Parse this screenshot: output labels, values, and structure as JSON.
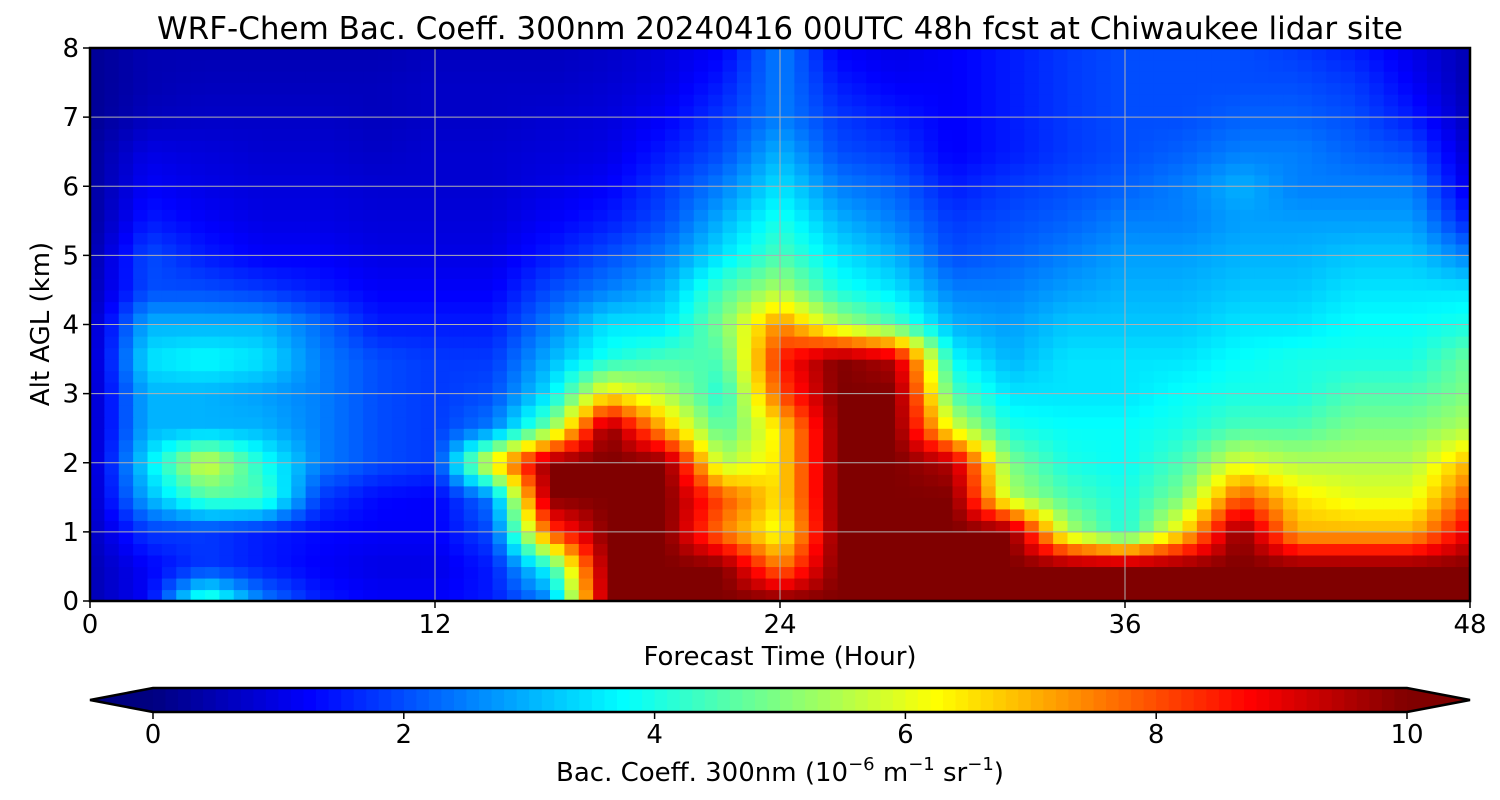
{
  "chart_data": {
    "type": "heatmap",
    "title": "WRF-Chem Bac. Coeff. 300nm  20240416 00UTC 48h fcst at Chiwaukee lidar site",
    "xlabel": "Forecast Time (Hour)",
    "ylabel": "Alt AGL (km)",
    "xlim": [
      0,
      48
    ],
    "ylim": [
      0,
      8
    ],
    "xticks": [
      0,
      12,
      24,
      36,
      48
    ],
    "yticks": [
      0,
      1,
      2,
      3,
      4,
      5,
      6,
      7,
      8
    ],
    "grid": true,
    "colormap": "jet",
    "colorbar": {
      "orientation": "horizontal",
      "position": "bottom",
      "label_prefix": "Bac. Coeff. 300nm  (10",
      "label_exp1": "−6",
      "label_mid": " m",
      "label_exp2": "−1",
      "label_mid2": " sr",
      "label_exp3": "−1",
      "label_suffix": ")",
      "vmin": 0,
      "vmax": 10,
      "ticks": [
        0,
        2,
        4,
        6,
        8,
        10
      ],
      "extend": "both"
    },
    "hours": [
      0,
      2,
      4,
      6,
      8,
      10,
      12,
      14,
      16,
      18,
      20,
      22,
      24,
      26,
      28,
      30,
      32,
      34,
      36,
      38,
      40,
      42,
      44,
      46,
      48
    ],
    "altitudes_km": [
      0,
      0.5,
      1,
      1.5,
      2,
      2.5,
      3,
      3.5,
      4,
      4.5,
      5,
      5.5,
      6,
      6.5,
      7,
      7.5,
      8
    ],
    "values": [
      [
        0.5,
        1.2,
        4.5,
        2.5,
        1.5,
        1.2,
        1.2,
        1.5,
        2.5,
        10,
        10,
        10,
        10,
        10,
        10,
        10,
        10,
        10,
        10,
        10,
        10,
        10,
        10,
        10,
        10
      ],
      [
        0.5,
        1.2,
        1.8,
        1.5,
        1.2,
        1.0,
        1.0,
        1.5,
        4.0,
        10,
        10,
        10,
        7.5,
        10,
        10,
        10,
        10,
        10,
        10,
        10,
        10,
        10,
        10,
        10,
        10
      ],
      [
        0.6,
        1.8,
        1.8,
        1.5,
        1.3,
        1.2,
        1.2,
        2.0,
        8.0,
        10,
        10,
        7.5,
        6.0,
        10,
        10,
        10,
        10,
        5.5,
        4.0,
        6.5,
        10,
        7.0,
        7.0,
        7.0,
        9.0
      ],
      [
        0.6,
        3.0,
        4.5,
        4.5,
        1.8,
        1.3,
        1.2,
        2.5,
        10,
        10,
        10,
        8.0,
        6.5,
        10,
        10,
        10,
        5.5,
        4.5,
        4.0,
        5.0,
        8.0,
        6.5,
        6.0,
        6.0,
        8.0
      ],
      [
        0.6,
        3.5,
        6.0,
        4.0,
        2.5,
        2.0,
        1.8,
        6.5,
        10,
        10,
        10,
        5.5,
        6.5,
        10,
        10,
        9.5,
        5.0,
        4.0,
        3.8,
        4.5,
        6.0,
        5.5,
        5.5,
        5.5,
        7.0
      ],
      [
        0.6,
        3.0,
        3.0,
        3.0,
        2.5,
        2.0,
        1.8,
        2.5,
        5.0,
        10,
        7.0,
        4.5,
        6.5,
        10,
        10,
        6.0,
        4.0,
        3.8,
        3.8,
        4.0,
        4.5,
        4.5,
        5.0,
        5.0,
        5.5
      ],
      [
        0.6,
        3.0,
        3.0,
        2.8,
        2.5,
        2.0,
        1.8,
        2.0,
        3.5,
        6.5,
        5.5,
        4.0,
        8.0,
        10,
        10,
        4.5,
        3.5,
        3.5,
        3.5,
        3.8,
        4.0,
        4.0,
        4.5,
        4.5,
        5.0
      ],
      [
        0.6,
        3.5,
        3.8,
        3.5,
        2.5,
        2.0,
        1.8,
        1.8,
        3.0,
        4.0,
        4.5,
        4.5,
        8.5,
        10,
        9.5,
        3.8,
        3.0,
        3.5,
        3.5,
        3.5,
        3.8,
        4.0,
        4.0,
        4.0,
        4.8
      ],
      [
        0.6,
        3.0,
        3.0,
        3.0,
        2.3,
        1.5,
        1.5,
        1.5,
        2.5,
        3.5,
        3.5,
        5.0,
        7.5,
        5.5,
        4.5,
        3.0,
        2.8,
        3.2,
        3.2,
        3.2,
        3.5,
        3.5,
        3.8,
        3.8,
        4.0
      ],
      [
        0.5,
        2.0,
        2.0,
        1.8,
        1.5,
        1.2,
        1.2,
        1.2,
        2.0,
        2.5,
        3.0,
        4.5,
        5.5,
        4.0,
        3.5,
        2.5,
        2.5,
        2.8,
        3.0,
        3.0,
        3.2,
        3.2,
        3.5,
        3.5,
        3.5
      ],
      [
        0.4,
        2.0,
        1.5,
        1.2,
        1.2,
        1.0,
        1.0,
        1.0,
        1.5,
        2.0,
        2.5,
        3.5,
        4.5,
        3.5,
        3.0,
        2.0,
        2.2,
        2.5,
        2.8,
        2.8,
        3.0,
        3.0,
        3.2,
        3.2,
        2.5
      ],
      [
        0.3,
        1.5,
        1.2,
        1.0,
        1.0,
        0.9,
        0.9,
        0.9,
        1.2,
        1.5,
        2.0,
        3.0,
        4.0,
        3.0,
        2.5,
        1.8,
        2.0,
        2.2,
        2.5,
        2.5,
        2.8,
        2.8,
        2.8,
        2.8,
        1.5
      ],
      [
        0.3,
        1.2,
        1.0,
        0.9,
        0.9,
        0.8,
        0.8,
        0.8,
        1.0,
        1.2,
        1.8,
        2.5,
        3.5,
        2.5,
        2.2,
        1.5,
        1.8,
        2.0,
        2.2,
        2.5,
        3.0,
        2.5,
        2.5,
        2.5,
        1.0
      ],
      [
        0.3,
        1.0,
        0.9,
        0.8,
        0.8,
        0.7,
        0.8,
        0.8,
        0.9,
        1.0,
        1.5,
        2.0,
        3.0,
        2.0,
        1.8,
        1.2,
        1.5,
        1.8,
        2.0,
        2.2,
        2.5,
        2.5,
        2.2,
        2.0,
        0.8
      ],
      [
        0.2,
        0.6,
        0.7,
        0.7,
        0.7,
        0.6,
        0.7,
        0.7,
        0.8,
        0.9,
        1.2,
        1.8,
        2.5,
        1.8,
        1.5,
        1.2,
        1.5,
        1.8,
        2.0,
        2.0,
        2.2,
        2.2,
        2.0,
        1.5,
        0.6
      ],
      [
        0.2,
        0.5,
        0.6,
        0.6,
        0.6,
        0.6,
        0.7,
        0.7,
        0.7,
        0.8,
        1.0,
        1.5,
        2.5,
        1.5,
        1.2,
        1.2,
        1.5,
        1.8,
        2.0,
        2.0,
        2.0,
        2.0,
        1.8,
        1.2,
        0.5
      ],
      [
        0.2,
        0.5,
        0.5,
        0.5,
        0.5,
        0.5,
        0.6,
        0.6,
        0.6,
        0.7,
        0.9,
        1.2,
        2.5,
        1.2,
        1.0,
        1.2,
        1.5,
        1.8,
        2.0,
        2.0,
        2.0,
        1.8,
        1.5,
        1.0,
        0.5
      ]
    ]
  }
}
